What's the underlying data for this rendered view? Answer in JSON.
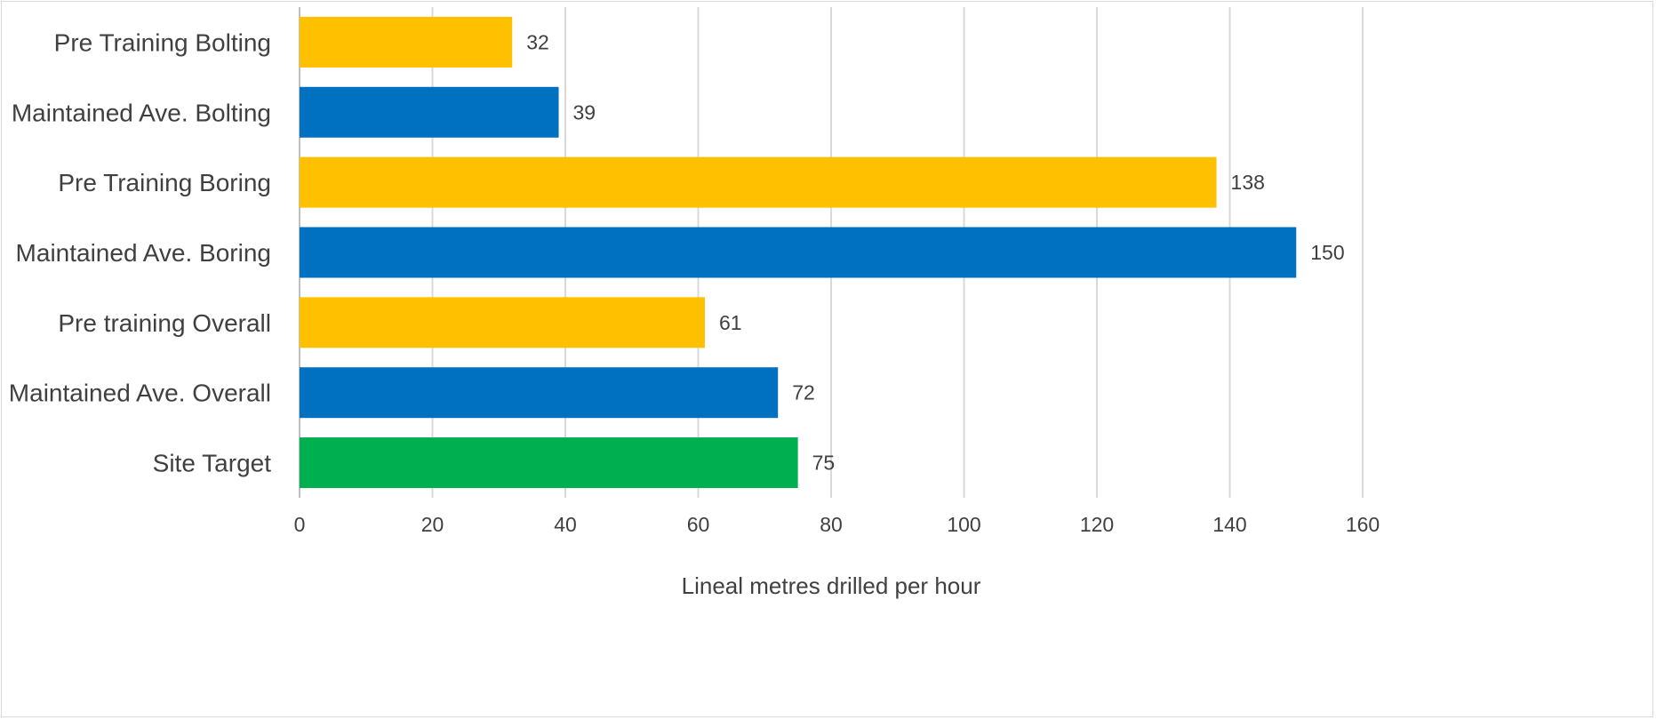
{
  "chart_data": {
    "type": "bar",
    "orientation": "horizontal",
    "categories": [
      "Pre Training Bolting",
      "Maintained Ave.  Bolting",
      "Pre Training Boring",
      "Maintained Ave. Boring",
      "Pre training Overall",
      "Maintained Ave. Overall",
      "Site Target"
    ],
    "values": [
      32,
      39,
      138,
      150,
      61,
      72,
      75
    ],
    "bar_colors": [
      "#FFC000",
      "#0070C0",
      "#FFC000",
      "#0070C0",
      "#FFC000",
      "#0070C0",
      "#00B050"
    ],
    "data_labels": [
      "32",
      "39",
      "138",
      "150",
      "61",
      "72",
      "75"
    ],
    "xlabel": "Lineal metres drilled per hour",
    "ylabel": "",
    "title": "",
    "xlim": [
      0,
      160
    ],
    "x_ticks": [
      0,
      20,
      40,
      60,
      80,
      100,
      120,
      140,
      160
    ],
    "x_tick_labels": [
      "0",
      "20",
      "40",
      "60",
      "80",
      "100",
      "120",
      "140",
      "160"
    ],
    "grid": "vertical major gridlines",
    "legend": "none"
  }
}
